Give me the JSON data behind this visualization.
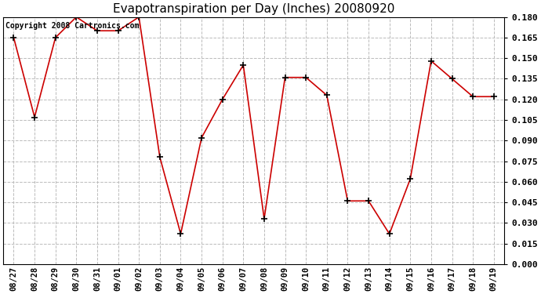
{
  "title": "Evapotranspiration per Day (Inches) 20080920",
  "copyright": "Copyright 2008 Cartronics.com",
  "labels": [
    "08/27",
    "08/28",
    "08/29",
    "08/30",
    "08/31",
    "09/01",
    "09/02",
    "09/03",
    "09/04",
    "09/05",
    "09/06",
    "09/07",
    "09/08",
    "09/09",
    "09/10",
    "09/11",
    "09/12",
    "09/13",
    "09/14",
    "09/15",
    "09/16",
    "09/17",
    "09/18",
    "09/19"
  ],
  "values": [
    0.165,
    0.107,
    0.165,
    0.18,
    0.17,
    0.17,
    0.18,
    0.078,
    0.022,
    0.092,
    0.12,
    0.145,
    0.033,
    0.136,
    0.136,
    0.123,
    0.046,
    0.046,
    0.022,
    0.062,
    0.148,
    0.135,
    0.122,
    0.122
  ],
  "line_color": "#cc0000",
  "marker": "+",
  "marker_color": "#000000",
  "marker_size": 6,
  "marker_linewidth": 1.2,
  "ylim": [
    0.0,
    0.18
  ],
  "yticks": [
    0.0,
    0.015,
    0.03,
    0.045,
    0.06,
    0.075,
    0.09,
    0.105,
    0.12,
    0.135,
    0.15,
    0.165,
    0.18
  ],
  "grid_color": "#bbbbbb",
  "grid_linestyle": "--",
  "background_color": "#ffffff",
  "title_fontsize": 11,
  "copyright_fontsize": 7,
  "tick_fontsize": 7.5,
  "ytick_fontsize": 8
}
